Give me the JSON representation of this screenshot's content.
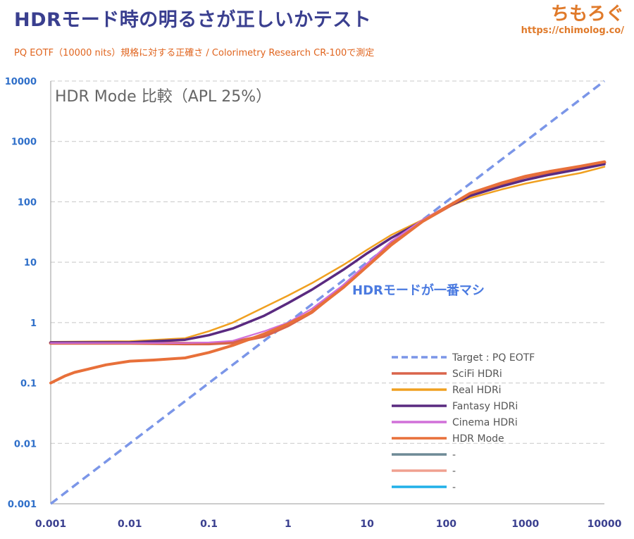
{
  "header": {
    "title": "HDRモード時の明るさが正しいかテスト",
    "subtitle": "PQ EOTF（10000 nits）規格に対する正確さ / Colorimetry Research CR-100で測定",
    "brand_name": "ちもろぐ",
    "brand_url": "https://chimolog.co/"
  },
  "chart_data": {
    "type": "line",
    "title": "HDR Mode 比較（APL 25%）",
    "annotation": "HDRモードが一番マシ",
    "x_scale": "log",
    "y_scale": "log",
    "xlim": [
      0.001,
      10000
    ],
    "ylim": [
      0.001,
      10000
    ],
    "x_tick_labels": [
      "0.001",
      "0.01",
      "0.1",
      "1",
      "10",
      "100",
      "1000",
      "10000"
    ],
    "y_tick_labels": [
      "0.001",
      "0.01",
      "0.1",
      "1",
      "10",
      "100",
      "1000",
      "10000"
    ],
    "grid": "horizontal dashed",
    "legend_position": "bottom-right",
    "series": [
      {
        "name": "Target : PQ EOTF",
        "color": "#7b96e8",
        "style": "dashed",
        "x": [
          0.001,
          10000
        ],
        "y": [
          0.001,
          10000
        ]
      },
      {
        "name": "SciFi HDRi",
        "color": "#d9644a",
        "style": "solid",
        "x": [
          0.001,
          0.01,
          0.05,
          0.1,
          0.2,
          0.5,
          1,
          2,
          5,
          10,
          20,
          50,
          100,
          200,
          500,
          1000,
          2000,
          5000,
          10000
        ],
        "y": [
          0.46,
          0.46,
          0.45,
          0.45,
          0.47,
          0.6,
          0.9,
          1.5,
          4,
          9,
          20,
          48,
          80,
          135,
          200,
          260,
          310,
          380,
          450
        ]
      },
      {
        "name": "Real HDRi",
        "color": "#f0a020",
        "style": "solid",
        "x": [
          0.001,
          0.01,
          0.05,
          0.1,
          0.2,
          0.5,
          1,
          2,
          5,
          10,
          20,
          50,
          100,
          200,
          500,
          1000,
          2000,
          5000,
          10000
        ],
        "y": [
          0.48,
          0.49,
          0.55,
          0.72,
          1.0,
          1.8,
          2.8,
          4.5,
          9,
          16,
          28,
          50,
          80,
          115,
          160,
          200,
          240,
          300,
          380
        ]
      },
      {
        "name": "Fantasy HDRi",
        "color": "#5a2a80",
        "style": "solid",
        "x": [
          0.001,
          0.01,
          0.05,
          0.1,
          0.2,
          0.5,
          1,
          2,
          5,
          10,
          20,
          50,
          100,
          200,
          500,
          1000,
          2000,
          5000,
          10000
        ],
        "y": [
          0.47,
          0.47,
          0.52,
          0.62,
          0.8,
          1.3,
          2.1,
          3.5,
          7.5,
          14,
          25,
          48,
          80,
          125,
          180,
          230,
          280,
          350,
          420
        ]
      },
      {
        "name": "Cinema HDRi",
        "color": "#d070d8",
        "style": "solid",
        "x": [
          0.001,
          0.01,
          0.05,
          0.1,
          0.2,
          0.5,
          1,
          2,
          5,
          10,
          20,
          50,
          100,
          200,
          500,
          1000,
          2000,
          5000,
          10000
        ],
        "y": [
          0.46,
          0.46,
          0.46,
          0.47,
          0.5,
          0.72,
          1.0,
          1.7,
          4.2,
          9.5,
          22,
          50,
          82,
          140,
          210,
          270,
          320,
          390,
          460
        ]
      },
      {
        "name": "HDR Mode",
        "color": "#e8703a",
        "style": "solid",
        "x": [
          0.001,
          0.0015,
          0.002,
          0.003,
          0.005,
          0.01,
          0.02,
          0.05,
          0.1,
          0.2,
          0.5,
          1,
          2,
          5,
          10,
          20,
          50,
          100,
          200,
          500,
          1000,
          2000,
          5000,
          10000
        ],
        "y": [
          0.1,
          0.13,
          0.15,
          0.17,
          0.2,
          0.23,
          0.24,
          0.26,
          0.32,
          0.42,
          0.65,
          0.95,
          1.5,
          3.8,
          8.5,
          19,
          47,
          80,
          138,
          205,
          265,
          318,
          390,
          460
        ]
      },
      {
        "name": "-",
        "color": "#6e8a96",
        "style": "solid",
        "x": [],
        "y": []
      },
      {
        "name": "-",
        "color": "#f0a090",
        "style": "solid",
        "x": [],
        "y": []
      },
      {
        "name": "-",
        "color": "#20b0e8",
        "style": "solid",
        "x": [],
        "y": []
      }
    ]
  }
}
